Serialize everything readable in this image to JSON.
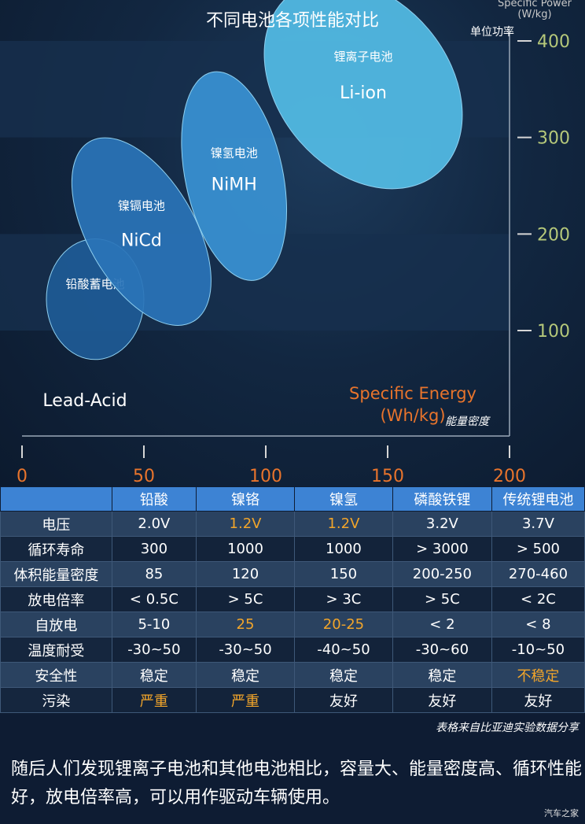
{
  "chart_data": {
    "type": "scatter",
    "title": "不同电池各项性能对比",
    "xlabel_en": "Specific Energy\n(Wh/kg)",
    "xlabel_cn": "能量密度",
    "ylabel_en": "Specific Power\n(W/kg)",
    "ylabel_cn": "单位功率",
    "xticks": [
      0,
      50,
      100,
      150,
      200
    ],
    "yticks": [
      100,
      200,
      300,
      400
    ],
    "xlim": [
      0,
      200
    ],
    "ylim": [
      0,
      430
    ],
    "series": [
      {
        "name_cn": "铅酸蓄电池",
        "name_en": "Lead-Acid",
        "x_range": [
          10,
          50
        ],
        "y_range": [
          70,
          195
        ],
        "color": "#1e5b96"
      },
      {
        "name_cn": "镍镉电池",
        "name_en": "NiCd",
        "x_range": [
          27,
          71
        ],
        "y_range": [
          95,
          310
        ],
        "color": "#2a74b8"
      },
      {
        "name_cn": "镍氢电池",
        "name_en": "NiMH",
        "x_range": [
          67,
          107
        ],
        "y_range": [
          150,
          370
        ],
        "color": "#3a92d4"
      },
      {
        "name_cn": "锂离子电池",
        "name_en": "Li-ion",
        "x_range": [
          105,
          175
        ],
        "y_range": [
          235,
          475
        ],
        "color": "#54bde6"
      }
    ]
  },
  "table": {
    "headers": [
      "",
      "铅酸",
      "镍铬",
      "镍氢",
      "磷酸铁锂",
      "传统锂电池"
    ],
    "rows": [
      {
        "label": "电压",
        "cells": [
          "2.0V",
          "1.2V",
          "1.2V",
          "3.2V",
          "3.7V"
        ],
        "highlight": [
          false,
          true,
          true,
          false,
          false
        ]
      },
      {
        "label": "循环寿命",
        "cells": [
          "300",
          "1000",
          "1000",
          "> 3000",
          "> 500"
        ],
        "highlight": [
          false,
          false,
          false,
          false,
          false
        ]
      },
      {
        "label": "体积能量密度",
        "cells": [
          "85",
          "120",
          "150",
          "200-250",
          "270-460"
        ],
        "highlight": [
          false,
          false,
          false,
          false,
          false
        ]
      },
      {
        "label": "放电倍率",
        "cells": [
          "< 0.5C",
          "> 5C",
          "> 3C",
          "> 5C",
          "< 2C"
        ],
        "highlight": [
          false,
          false,
          false,
          false,
          false
        ]
      },
      {
        "label": "自放电",
        "cells": [
          "5-10",
          "25",
          "20-25",
          "< 2",
          "< 8"
        ],
        "highlight": [
          false,
          true,
          true,
          false,
          false
        ]
      },
      {
        "label": "温度耐受",
        "cells": [
          "-30~50",
          "-30~50",
          "-40~50",
          "-30~60",
          "-10~50"
        ],
        "highlight": [
          false,
          false,
          false,
          false,
          false
        ]
      },
      {
        "label": "安全性",
        "cells": [
          "稳定",
          "稳定",
          "稳定",
          "稳定",
          "不稳定"
        ],
        "highlight": [
          false,
          false,
          false,
          false,
          true
        ]
      },
      {
        "label": "污染",
        "cells": [
          "严重",
          "严重",
          "友好",
          "友好",
          "友好"
        ],
        "highlight": [
          true,
          true,
          false,
          false,
          false
        ]
      }
    ]
  },
  "source_note": "表格来自比亚迪实验数据分享",
  "caption": "随后人们发现锂离子电池和其他电池相比，容量大、能量密度高、循环性能好，放电倍率高，可以用作驱动车辆使用。",
  "watermark": "汽车之家",
  "colors": {
    "accent_orange": "#e8742c",
    "tick_green": "#b5c87a",
    "header_blue": "#3d83d4",
    "highlight": "#f2a52a"
  }
}
